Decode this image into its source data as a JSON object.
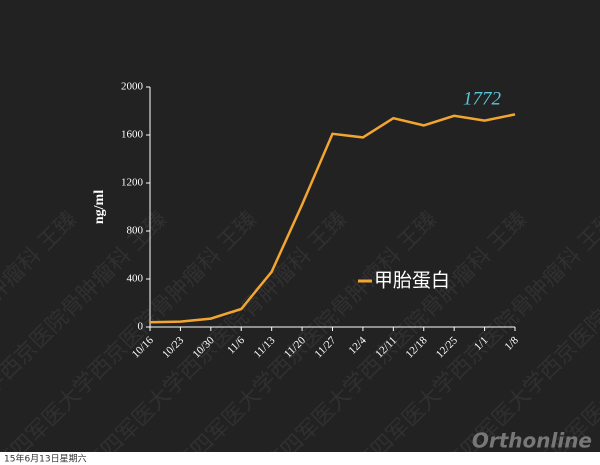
{
  "chart_data": {
    "type": "line",
    "y_label": "ng/ml",
    "categories": [
      "10/16",
      "10/23",
      "10/30",
      "11/6",
      "11/13",
      "11/20",
      "11/27",
      "12/4",
      "12/11",
      "12/18",
      "12/25",
      "1/1",
      "1/8"
    ],
    "series": [
      {
        "name": "甲胎蛋白",
        "color": "#f2a530",
        "values": [
          40,
          45,
          70,
          150,
          460,
          1020,
          1610,
          1580,
          1740,
          1680,
          1760,
          1720,
          1772
        ]
      }
    ],
    "data_label_color": "#5cc4d8",
    "ylim": [
      0,
      2000
    ],
    "yticks": [
      0,
      400,
      800,
      1200,
      1600,
      2000
    ],
    "grid": false
  },
  "watermark": "第四军医大学西京医院骨肿瘤科 王臻",
  "footer": {
    "date": "15年6月13日星期六",
    "logo": "Orthonline"
  }
}
